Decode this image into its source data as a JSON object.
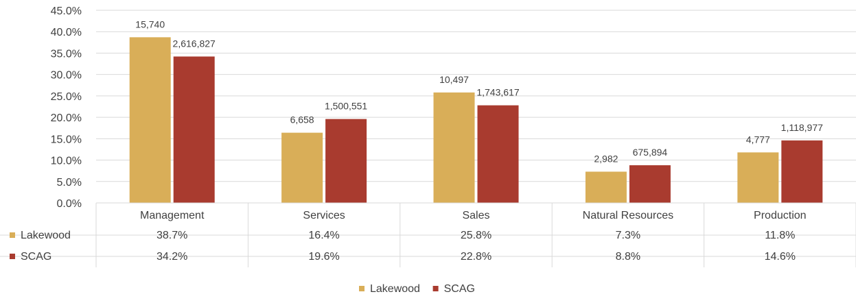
{
  "chart_data": {
    "type": "bar",
    "categories": [
      "Management",
      "Services",
      "Sales",
      "Natural Resources",
      "Production"
    ],
    "series": [
      {
        "name": "Lakewood",
        "color": "#D9AE58",
        "values": [
          38.7,
          16.4,
          25.8,
          7.3,
          11.8
        ],
        "value_labels": [
          "38.7%",
          "16.4%",
          "25.8%",
          "7.3%",
          "11.8%"
        ],
        "count_labels": [
          "15,740",
          "6,658",
          "10,497",
          "2,982",
          "4,777"
        ]
      },
      {
        "name": "SCAG",
        "color": "#A93B2F",
        "values": [
          34.2,
          19.6,
          22.8,
          8.8,
          14.6
        ],
        "value_labels": [
          "34.2%",
          "19.6%",
          "22.8%",
          "8.8%",
          "14.6%"
        ],
        "count_labels": [
          "2,616,827",
          "1,500,551",
          "1,743,617",
          "675,894",
          "1,118,977"
        ]
      }
    ],
    "y_ticks": [
      "0.0%",
      "5.0%",
      "10.0%",
      "15.0%",
      "20.0%",
      "25.0%",
      "30.0%",
      "35.0%",
      "40.0%",
      "45.0%"
    ],
    "ylim": [
      0,
      45
    ],
    "grid": true,
    "data_table": true,
    "legend": "bottom-center"
  }
}
